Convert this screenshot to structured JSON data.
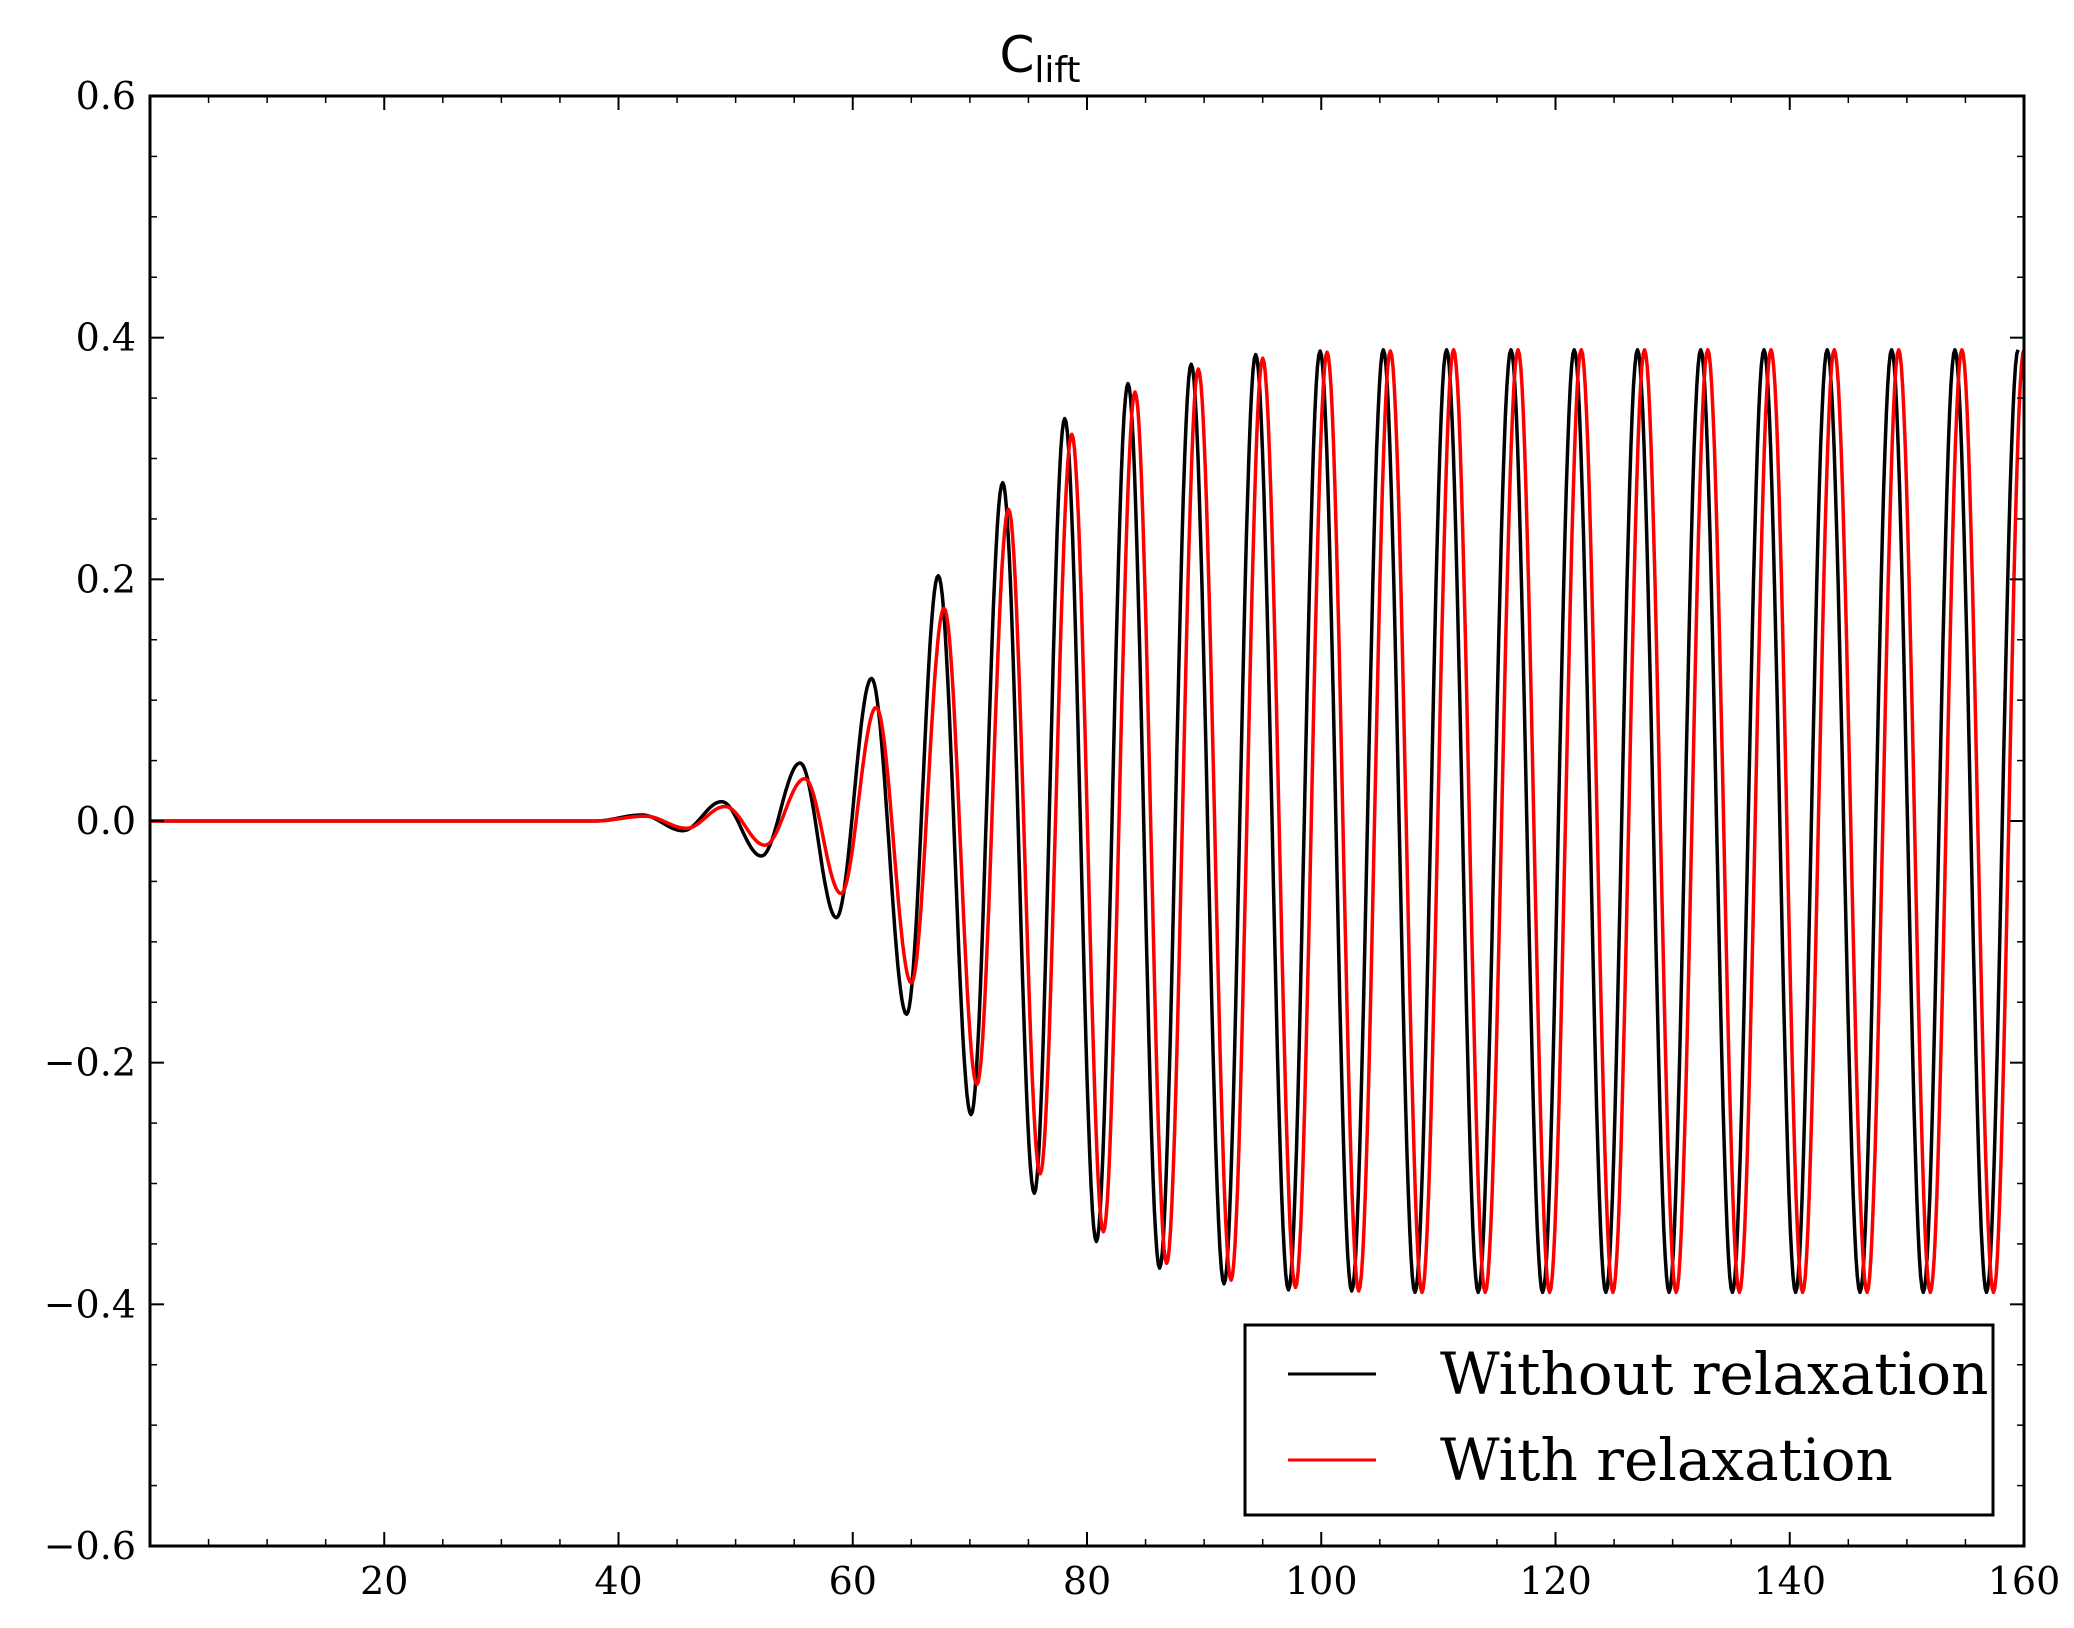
{
  "chart_data": {
    "type": "line",
    "title": "C",
    "title_subscript": "lift",
    "xlabel": "",
    "ylabel": "",
    "xlim": [
      0,
      160
    ],
    "ylim": [
      -0.6,
      0.6
    ],
    "x_ticks": [
      20,
      40,
      60,
      80,
      100,
      120,
      140,
      160
    ],
    "x_tick_labels": [
      "20",
      "40",
      "60",
      "80",
      "100",
      "120",
      "140",
      "160"
    ],
    "y_ticks": [
      -0.6,
      -0.4,
      -0.2,
      0.0,
      0.2,
      0.4,
      0.6
    ],
    "y_tick_labels": [
      "−0.6",
      "−0.4",
      "−0.2",
      "0.0",
      "0.2",
      "0.4",
      "0.6"
    ],
    "grid": false,
    "legend_position": "bottom-right",
    "series": [
      {
        "name": "Without relaxation",
        "color": "#000000",
        "peaks": [
          [
            42.0,
            0.005
          ],
          [
            45.5,
            -0.008
          ],
          [
            48.8,
            0.016
          ],
          [
            52.2,
            -0.029
          ],
          [
            55.5,
            0.048
          ],
          [
            58.6,
            -0.08
          ],
          [
            61.6,
            0.118
          ],
          [
            64.6,
            -0.16
          ],
          [
            67.3,
            0.203
          ],
          [
            70.1,
            -0.243
          ],
          [
            72.8,
            0.28
          ],
          [
            75.5,
            -0.308
          ],
          [
            78.1,
            0.333
          ],
          [
            80.8,
            -0.348
          ],
          [
            83.5,
            0.362
          ],
          [
            86.2,
            -0.37
          ],
          [
            88.9,
            0.378
          ],
          [
            91.7,
            -0.383
          ],
          [
            94.4,
            0.386
          ],
          [
            97.2,
            -0.388
          ],
          [
            99.9,
            0.389
          ],
          [
            102.6,
            -0.389
          ],
          [
            105.3,
            0.39
          ],
          [
            108.0,
            -0.39
          ],
          [
            110.7,
            0.39
          ],
          [
            113.4,
            -0.39
          ],
          [
            116.2,
            0.39
          ],
          [
            118.9,
            -0.39
          ],
          [
            121.6,
            0.39
          ],
          [
            124.3,
            -0.39
          ],
          [
            127.0,
            0.39
          ],
          [
            129.7,
            -0.39
          ],
          [
            132.4,
            0.39
          ],
          [
            135.1,
            -0.39
          ],
          [
            137.8,
            0.39
          ],
          [
            140.5,
            -0.39
          ],
          [
            143.2,
            0.39
          ],
          [
            146.0,
            -0.39
          ],
          [
            148.7,
            0.39
          ],
          [
            151.4,
            -0.39
          ],
          [
            154.1,
            0.39
          ],
          [
            156.8,
            -0.39
          ],
          [
            159.5,
            0.39
          ]
        ]
      },
      {
        "name": "With relaxation",
        "color": "#ff0000",
        "peaks": [
          [
            42.3,
            0.004
          ],
          [
            45.8,
            -0.006
          ],
          [
            49.1,
            0.012
          ],
          [
            52.5,
            -0.02
          ],
          [
            55.9,
            0.035
          ],
          [
            59.0,
            -0.06
          ],
          [
            62.0,
            0.094
          ],
          [
            65.0,
            -0.134
          ],
          [
            67.8,
            0.176
          ],
          [
            70.6,
            -0.218
          ],
          [
            73.3,
            0.258
          ],
          [
            76.0,
            -0.292
          ],
          [
            78.7,
            0.32
          ],
          [
            81.4,
            -0.34
          ],
          [
            84.1,
            0.355
          ],
          [
            86.8,
            -0.366
          ],
          [
            89.5,
            0.374
          ],
          [
            92.3,
            -0.38
          ],
          [
            95.0,
            0.383
          ],
          [
            97.8,
            -0.386
          ],
          [
            100.5,
            0.388
          ],
          [
            103.2,
            -0.389
          ],
          [
            105.9,
            0.389
          ],
          [
            108.6,
            -0.39
          ],
          [
            111.3,
            0.39
          ],
          [
            114.0,
            -0.39
          ],
          [
            116.8,
            0.39
          ],
          [
            119.5,
            -0.39
          ],
          [
            122.2,
            0.39
          ],
          [
            124.9,
            -0.39
          ],
          [
            127.6,
            0.39
          ],
          [
            130.3,
            -0.39
          ],
          [
            133.0,
            0.39
          ],
          [
            135.7,
            -0.39
          ],
          [
            138.4,
            0.39
          ],
          [
            141.1,
            -0.39
          ],
          [
            143.8,
            0.39
          ],
          [
            146.6,
            -0.39
          ],
          [
            149.3,
            0.39
          ],
          [
            152.0,
            -0.39
          ],
          [
            154.7,
            0.39
          ],
          [
            157.4,
            -0.39
          ],
          [
            160.0,
            0.39
          ]
        ]
      }
    ]
  }
}
